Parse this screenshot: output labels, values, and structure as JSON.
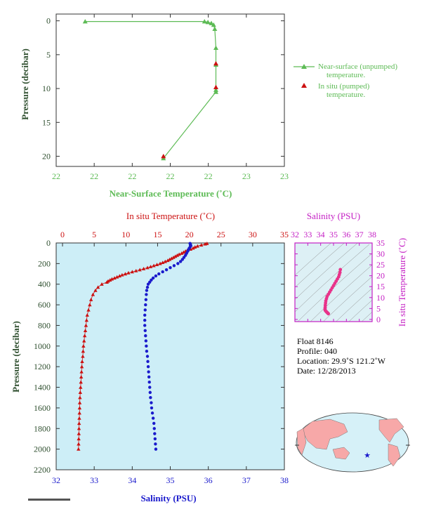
{
  "colors": {
    "green": "#5dbb55",
    "red": "#cc1111",
    "blue": "#1a1acc",
    "magenta": "#c41ec4",
    "pink": "#e8338a",
    "axis_text": "#2f4f2f",
    "plot_bg": "#cdeef7",
    "land": "#f7a8a8",
    "ocean": "#d6f1f8",
    "star": "#1a1acc"
  },
  "info": {
    "float": "Float  8146",
    "profile": "Profile:  040",
    "location": "Location:  29.9˚S  121.2˚W",
    "date": "Date:  12/28/2013"
  },
  "chart_data": [
    {
      "type": "line",
      "id": "near-surface",
      "xlabel": "Near-Surface Temperature (˚C)",
      "ylabel": "Pressure (decibar)",
      "x_ticks": [
        "22",
        "22",
        "22",
        "22",
        "22",
        "23",
        "23"
      ],
      "y_ticks": [
        "0",
        "5",
        "10",
        "15",
        "20"
      ],
      "y_tick_values": [
        0,
        5,
        10,
        15,
        20
      ],
      "xlim": [
        22.4,
        23.4
      ],
      "ylim": [
        21.5,
        -1
      ],
      "legend_position": "right",
      "legend": [
        {
          "name": "Near-surface (unpumped)",
          "name2": "temperature."
        },
        {
          "name": "In situ (pumped)",
          "name2": "temperature."
        }
      ],
      "series": [
        {
          "name": "Near-surface (unpumped) temperature.",
          "x": [
            22.527,
            23.05,
            23.065,
            23.08,
            23.09,
            23.095,
            23.1,
            23.1,
            23.1,
            23.1,
            22.87
          ],
          "y": [
            0.1,
            0.1,
            0.2,
            0.35,
            0.6,
            1.2,
            4.0,
            6.5,
            10.2,
            10.5,
            20.3
          ]
        },
        {
          "name": "In situ (pumped) temperature.",
          "x": [
            23.1,
            23.1,
            22.87
          ],
          "y": [
            6.3,
            9.8,
            20.0
          ]
        }
      ]
    },
    {
      "type": "line",
      "id": "profile",
      "ylabel": "Pressure (decibar)",
      "x_top_label": "In situ Temperature (˚C)",
      "x_bottom_label": "Salinity (PSU)",
      "temp_ticks": [
        "0",
        "5",
        "10",
        "15",
        "20",
        "25",
        "30",
        "35"
      ],
      "temp_tick_values": [
        0,
        5,
        10,
        15,
        20,
        25,
        30,
        35
      ],
      "sal_ticks": [
        "32",
        "33",
        "34",
        "35",
        "36",
        "37",
        "38"
      ],
      "sal_tick_values": [
        32,
        33,
        34,
        35,
        36,
        37,
        38
      ],
      "y_ticks": [
        "0",
        "200",
        "400",
        "600",
        "800",
        "1000",
        "1200",
        "1400",
        "1600",
        "1800",
        "2000",
        "2200"
      ],
      "y_tick_values": [
        0,
        200,
        400,
        600,
        800,
        1000,
        1200,
        1400,
        1600,
        1800,
        2000,
        2200
      ],
      "temp_lim": [
        -1,
        35
      ],
      "sal_lim": [
        32,
        38
      ],
      "ylim": [
        0,
        2200
      ],
      "series": [
        {
          "name": "In situ Temperature",
          "pressure": [
            5,
            10,
            20,
            30,
            40,
            50,
            60,
            70,
            80,
            90,
            100,
            110,
            120,
            130,
            140,
            150,
            160,
            170,
            180,
            190,
            200,
            210,
            220,
            230,
            240,
            250,
            260,
            270,
            280,
            290,
            300,
            310,
            320,
            330,
            340,
            350,
            360,
            370,
            380,
            400,
            430,
            460,
            500,
            550,
            600,
            650,
            700,
            750,
            800,
            850,
            900,
            950,
            1000,
            1050,
            1100,
            1150,
            1200,
            1250,
            1300,
            1350,
            1400,
            1450,
            1500,
            1550,
            1600,
            1650,
            1700,
            1750,
            1800,
            1850,
            1900,
            1950,
            2000
          ],
          "values": [
            22.8,
            22.5,
            21.9,
            21.3,
            20.9,
            20.6,
            20.2,
            19.7,
            19.4,
            19.1,
            18.8,
            18.4,
            18.1,
            17.8,
            17.5,
            17.2,
            16.9,
            16.6,
            16.2,
            15.8,
            15.4,
            14.9,
            14.4,
            13.9,
            13.4,
            12.8,
            12.2,
            11.6,
            11.0,
            10.4,
            9.9,
            9.4,
            9.0,
            8.6,
            8.2,
            7.8,
            7.5,
            7.2,
            7.0,
            6.2,
            5.6,
            5.2,
            4.8,
            4.5,
            4.3,
            4.1,
            3.9,
            3.8,
            3.7,
            3.6,
            3.5,
            3.4,
            3.3,
            3.25,
            3.2,
            3.1,
            3.05,
            3.0,
            2.95,
            2.9,
            2.85,
            2.8,
            2.75,
            2.72,
            2.7,
            2.68,
            2.65,
            2.62,
            2.6,
            2.58,
            2.56,
            2.54,
            2.52
          ]
        },
        {
          "name": "Salinity",
          "pressure": [
            5,
            15,
            25,
            35,
            50,
            65,
            80,
            100,
            120,
            140,
            160,
            180,
            200,
            220,
            240,
            260,
            280,
            300,
            320,
            340,
            360,
            380,
            400,
            430,
            460,
            500,
            550,
            600,
            650,
            700,
            750,
            800,
            850,
            900,
            950,
            1000,
            1050,
            1100,
            1150,
            1200,
            1250,
            1300,
            1350,
            1400,
            1450,
            1500,
            1550,
            1600,
            1650,
            1700,
            1750,
            1800,
            1850,
            1900,
            1950,
            2000
          ],
          "values": [
            35.52,
            35.53,
            35.54,
            35.53,
            35.5,
            35.48,
            35.46,
            35.43,
            35.4,
            35.36,
            35.32,
            35.27,
            35.2,
            35.1,
            35.0,
            34.9,
            34.8,
            34.7,
            34.62,
            34.55,
            34.5,
            34.46,
            34.42,
            34.4,
            34.38,
            34.37,
            34.36,
            34.35,
            34.34,
            34.33,
            34.33,
            34.33,
            34.34,
            34.35,
            34.36,
            34.37,
            34.38,
            34.4,
            34.41,
            34.42,
            34.43,
            34.44,
            34.45,
            34.46,
            34.47,
            34.48,
            34.5,
            34.51,
            34.53,
            34.55,
            34.57,
            34.58,
            34.59,
            34.6,
            34.61,
            34.62
          ]
        }
      ]
    },
    {
      "type": "scatter",
      "id": "ts-diagram",
      "xlabel": "Salinity (PSU)",
      "ylabel": "In situ Temperature (˚C)",
      "x_ticks": [
        "32",
        "33",
        "34",
        "35",
        "36",
        "37",
        "38"
      ],
      "x_tick_values": [
        32,
        33,
        34,
        35,
        36,
        37,
        38
      ],
      "y_ticks": [
        "0",
        "5",
        "10",
        "15",
        "20",
        "25",
        "30",
        "35"
      ],
      "y_tick_values": [
        0,
        5,
        10,
        15,
        20,
        25,
        30,
        35
      ],
      "xlim": [
        32,
        38
      ],
      "ylim": [
        -1,
        35
      ],
      "x": [
        35.53,
        35.5,
        35.45,
        35.4,
        35.3,
        35.2,
        35.1,
        35.0,
        34.9,
        34.8,
        34.7,
        34.6,
        34.5,
        34.45,
        34.4,
        34.38,
        34.36,
        34.35,
        34.34,
        34.35,
        34.4,
        34.45,
        34.5,
        34.55,
        34.6
      ],
      "y": [
        22.8,
        21.5,
        20.5,
        19.5,
        18.5,
        17.5,
        16.5,
        15.5,
        14.5,
        13.5,
        12.5,
        11.5,
        10.5,
        9.5,
        8.5,
        7.5,
        6.5,
        5.5,
        4.8,
        4.2,
        3.8,
        3.5,
        3.2,
        2.9,
        2.6
      ]
    }
  ]
}
